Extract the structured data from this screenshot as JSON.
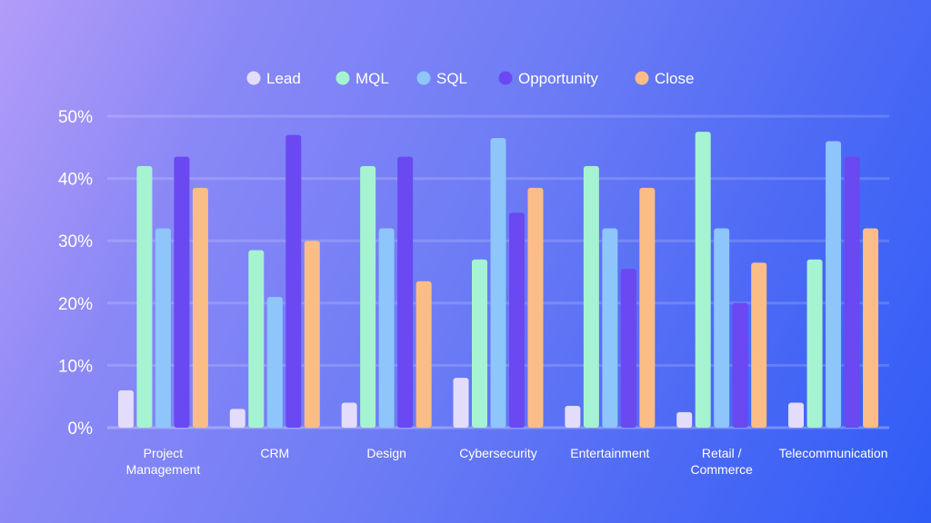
{
  "chart_data": {
    "type": "bar",
    "categories": [
      [
        "Project",
        "Management"
      ],
      [
        "CRM"
      ],
      [
        "Design"
      ],
      [
        "Cybersecurity"
      ],
      [
        "Entertainment"
      ],
      [
        "Retail /",
        "Commerce"
      ],
      [
        "Telecommunication"
      ]
    ],
    "series": [
      {
        "name": "Lead",
        "color": "#e4dcfb",
        "values": [
          6,
          3,
          4,
          8,
          3.5,
          2.5,
          4
        ]
      },
      {
        "name": "MQL",
        "color": "#a5f3d0",
        "values": [
          42,
          28.5,
          42,
          27,
          42,
          47.5,
          27
        ]
      },
      {
        "name": "SQL",
        "color": "#8ec5fb",
        "values": [
          32,
          21,
          32,
          46.5,
          32,
          32,
          46
        ]
      },
      {
        "name": "Opportunity",
        "color": "#6a48f2",
        "values": [
          43.5,
          47,
          43.5,
          34.5,
          25.5,
          20,
          43.5
        ]
      },
      {
        "name": "Close",
        "color": "#fbbd86",
        "values": [
          38.5,
          30,
          23.5,
          38.5,
          38.5,
          26.5,
          32
        ]
      }
    ],
    "y_ticks": [
      "0%",
      "10%",
      "20%",
      "30%",
      "40%",
      "50%"
    ],
    "ylim": [
      0,
      50
    ],
    "grid": true,
    "legend": "top-center"
  }
}
